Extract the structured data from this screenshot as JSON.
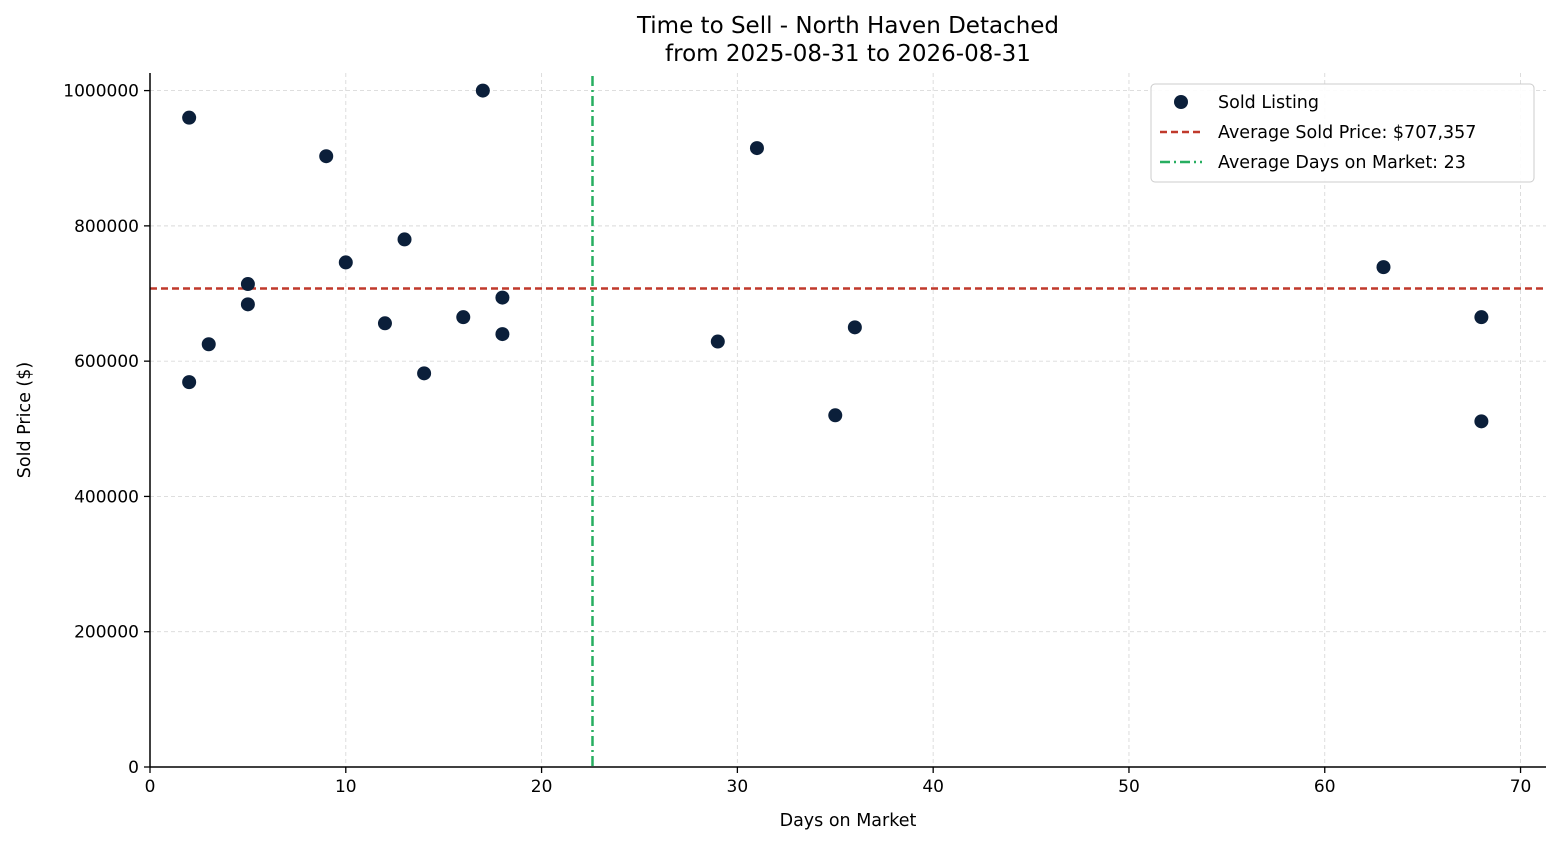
{
  "chart_data": {
    "type": "scatter",
    "title": "Time to Sell - North Haven Detached",
    "subtitle": "from 2025-08-31 to 2026-08-31",
    "xlabel": "Days on Market",
    "ylabel": "Sold Price ($)",
    "xlim": [
      0,
      71.3
    ],
    "ylim": [
      0,
      1026000
    ],
    "x_ticks": [
      0,
      10,
      20,
      30,
      40,
      50,
      60,
      70
    ],
    "y_ticks": [
      0,
      200000,
      400000,
      600000,
      800000,
      1000000
    ],
    "grid": true,
    "legend_position": "top-right",
    "series": [
      {
        "name": "Sold Listing",
        "color": "#0b1f3a",
        "points": [
          {
            "x": 2,
            "y": 960000
          },
          {
            "x": 2,
            "y": 569000
          },
          {
            "x": 3,
            "y": 625000
          },
          {
            "x": 5,
            "y": 714000
          },
          {
            "x": 5,
            "y": 684000
          },
          {
            "x": 9,
            "y": 903000
          },
          {
            "x": 10,
            "y": 746000
          },
          {
            "x": 12,
            "y": 656000
          },
          {
            "x": 13,
            "y": 780000
          },
          {
            "x": 14,
            "y": 582000
          },
          {
            "x": 16,
            "y": 665000
          },
          {
            "x": 17,
            "y": 1000000
          },
          {
            "x": 18,
            "y": 694000
          },
          {
            "x": 18,
            "y": 640000
          },
          {
            "x": 29,
            "y": 629000
          },
          {
            "x": 31,
            "y": 915000
          },
          {
            "x": 35,
            "y": 520000
          },
          {
            "x": 36,
            "y": 650000
          },
          {
            "x": 63,
            "y": 739000
          },
          {
            "x": 68,
            "y": 665000
          },
          {
            "x": 68,
            "y": 511000
          }
        ]
      }
    ],
    "reference_lines": [
      {
        "name": "Average Sold Price: $707,357",
        "orientation": "horizontal",
        "value": 707357,
        "color": "#c0392b",
        "style": "dashed"
      },
      {
        "name": "Average Days on Market: 23",
        "orientation": "vertical",
        "value": 22.6,
        "color": "#27ae60",
        "style": "dashdot"
      }
    ]
  }
}
